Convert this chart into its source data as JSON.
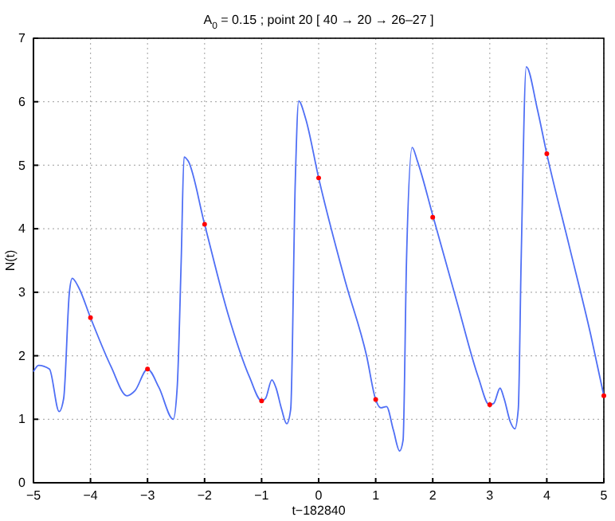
{
  "chart_data": {
    "type": "line",
    "title": "A$_{0}$ = 0.15 ; point 20 [ 40 → 20 → 26–27 ]",
    "xlabel": "t−182840",
    "ylabel": "N(t)",
    "xlim": [
      -5,
      5
    ],
    "xticks": [
      -5,
      -4,
      -3,
      -2,
      -1,
      0,
      1,
      2,
      3,
      4,
      5
    ],
    "ylim": [
      0,
      7
    ],
    "yticks": [
      0,
      1,
      2,
      3,
      4,
      5,
      6,
      7
    ],
    "grid": true,
    "line_style": "solid",
    "series": [
      {
        "color": "#4f6ff5",
        "marker": "none",
        "x": [
          -5,
          -4.91,
          -4.72,
          -4.55,
          -4.47,
          -4.37,
          -4.32,
          -4.21,
          -4,
          -3.64,
          -3.36,
          -3.22,
          -3,
          -2.8,
          -2.55,
          -2.48,
          -2.41,
          -2.36,
          -2.29,
          -2,
          -1.59,
          -1.21,
          -1,
          -0.93,
          -0.82,
          -0.75,
          -0.65,
          -0.56,
          -0.49,
          -0.41,
          -0.35,
          -0.23,
          0,
          0.47,
          0.84,
          1,
          1.09,
          1.19,
          1.31,
          1.42,
          1.48,
          1.54,
          1.64,
          1.73,
          2.01,
          2.43,
          2.8,
          2.99,
          3.07,
          3.18,
          3.25,
          3.36,
          3.44,
          3.5,
          3.55,
          3.64,
          3.83,
          4,
          4.39,
          4.77,
          5
        ],
        "values": [
          1.75,
          1.85,
          1.79,
          1.12,
          1.33,
          3.0,
          3.22,
          3.08,
          2.6,
          1.83,
          1.37,
          1.45,
          1.79,
          1.5,
          1.0,
          1.5,
          3.49,
          5.13,
          5.07,
          4.07,
          2.66,
          1.66,
          1.29,
          1.33,
          1.62,
          1.5,
          1.16,
          0.93,
          1.16,
          4.74,
          6.01,
          5.74,
          4.8,
          3.16,
          2.0,
          1.31,
          1.18,
          1.2,
          0.83,
          0.5,
          0.67,
          3.49,
          5.28,
          5.07,
          4.18,
          2.83,
          1.66,
          1.23,
          1.25,
          1.49,
          1.33,
          0.96,
          0.85,
          1.16,
          3.49,
          6.55,
          5.9,
          5.18,
          3.74,
          2.33,
          1.37
        ]
      },
      {
        "type": "scatter",
        "color": "#ff0000",
        "marker": "circle",
        "x": [
          -4,
          -3,
          -2,
          -1,
          0,
          1,
          2,
          3,
          4,
          5
        ],
        "values": [
          2.6,
          1.79,
          4.07,
          1.29,
          4.8,
          1.31,
          4.18,
          1.23,
          5.18,
          1.37
        ]
      }
    ]
  }
}
